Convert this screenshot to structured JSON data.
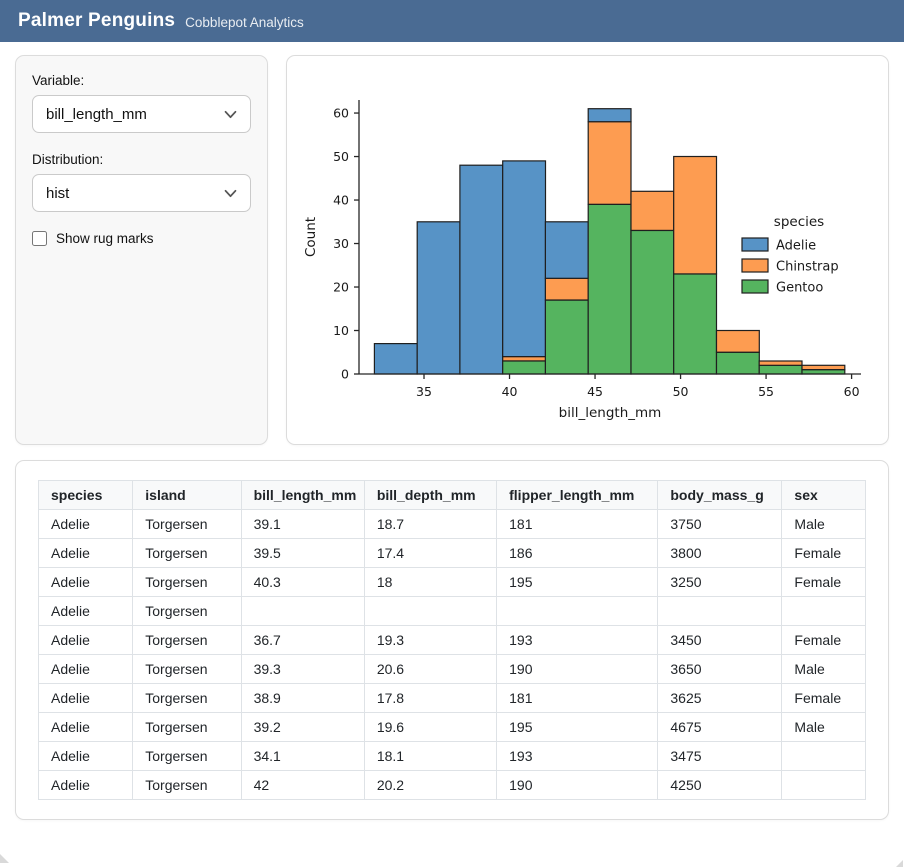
{
  "header": {
    "title": "Palmer Penguins",
    "subtitle": "Cobblepot Analytics"
  },
  "colors": {
    "header_bg": "#4a6b93",
    "adelie": "#5793c6",
    "chinstrap": "#fd9c51",
    "gentoo": "#55b45f"
  },
  "sidebar": {
    "variable_label": "Variable:",
    "variable_value": "bill_length_mm",
    "distribution_label": "Distribution:",
    "distribution_value": "hist",
    "rug_checkbox_label": "Show rug marks",
    "rug_checked": false
  },
  "chart_data": {
    "type": "bar",
    "subtype": "stacked-histogram",
    "title": "",
    "xlabel": "bill_length_mm",
    "ylabel": "Count",
    "legend_title": "species",
    "legend_position": "center right",
    "grid": false,
    "xlim": [
      31.55,
      60.55
    ],
    "ylim": [
      0,
      63
    ],
    "xticks": [
      35,
      40,
      45,
      50,
      55,
      60
    ],
    "yticks": [
      0,
      10,
      20,
      30,
      40,
      50,
      60
    ],
    "bin_edges": [
      32.1,
      34.6,
      37.1,
      39.6,
      42.1,
      44.6,
      47.1,
      49.6,
      52.1,
      54.6,
      57.1,
      59.6
    ],
    "stack_order_bottom_to_top": [
      "Gentoo",
      "Chinstrap",
      "Adelie"
    ],
    "series": [
      {
        "name": "Adelie",
        "color": "#5793c6",
        "values": [
          7,
          35,
          48,
          45,
          13,
          3,
          0,
          0,
          0,
          0,
          0
        ]
      },
      {
        "name": "Chinstrap",
        "color": "#fd9c51",
        "values": [
          0,
          0,
          0,
          1,
          5,
          19,
          9,
          27,
          5,
          1,
          1
        ]
      },
      {
        "name": "Gentoo",
        "color": "#55b45f",
        "values": [
          0,
          0,
          0,
          3,
          17,
          39,
          33,
          23,
          5,
          2,
          1
        ]
      }
    ],
    "bin_totals": [
      7,
      35,
      48,
      49,
      35,
      61,
      42,
      50,
      10,
      3,
      2
    ]
  },
  "table": {
    "columns": [
      "species",
      "island",
      "bill_length_mm",
      "bill_depth_mm",
      "flipper_length_mm",
      "body_mass_g",
      "sex"
    ],
    "col_widths_pct": [
      11.4,
      13.1,
      14.9,
      16.0,
      19.5,
      15.0,
      10.1
    ],
    "rows": [
      [
        "Adelie",
        "Torgersen",
        "39.1",
        "18.7",
        "181",
        "3750",
        "Male"
      ],
      [
        "Adelie",
        "Torgersen",
        "39.5",
        "17.4",
        "186",
        "3800",
        "Female"
      ],
      [
        "Adelie",
        "Torgersen",
        "40.3",
        "18",
        "195",
        "3250",
        "Female"
      ],
      [
        "Adelie",
        "Torgersen",
        "",
        "",
        "",
        "",
        ""
      ],
      [
        "Adelie",
        "Torgersen",
        "36.7",
        "19.3",
        "193",
        "3450",
        "Female"
      ],
      [
        "Adelie",
        "Torgersen",
        "39.3",
        "20.6",
        "190",
        "3650",
        "Male"
      ],
      [
        "Adelie",
        "Torgersen",
        "38.9",
        "17.8",
        "181",
        "3625",
        "Female"
      ],
      [
        "Adelie",
        "Torgersen",
        "39.2",
        "19.6",
        "195",
        "4675",
        "Male"
      ],
      [
        "Adelie",
        "Torgersen",
        "34.1",
        "18.1",
        "193",
        "3475",
        ""
      ],
      [
        "Adelie",
        "Torgersen",
        "42",
        "20.2",
        "190",
        "4250",
        ""
      ]
    ]
  }
}
